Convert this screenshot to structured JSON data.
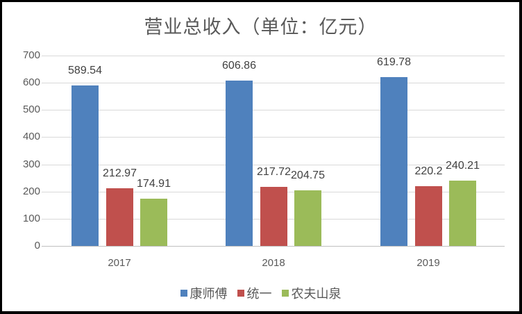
{
  "chart_data": {
    "type": "bar",
    "title": "营业总收入（单位：亿元）",
    "categories": [
      "2017",
      "2018",
      "2019"
    ],
    "series": [
      {
        "name": "康师傅",
        "color": "#4f81bd",
        "values": [
          589.54,
          606.86,
          619.78
        ],
        "labels": [
          "589.54",
          "606.86",
          "619.78"
        ]
      },
      {
        "name": "统一",
        "color": "#c0504d",
        "values": [
          212.97,
          217.72,
          220.2
        ],
        "labels": [
          "212.97",
          "217.72",
          "220.2"
        ]
      },
      {
        "name": "农夫山泉",
        "color": "#9bbb59",
        "values": [
          174.91,
          204.75,
          240.21
        ],
        "labels": [
          "174.91",
          "204.75",
          "240.21"
        ]
      }
    ],
    "xlabel": "",
    "ylabel": "",
    "ylim": [
      0,
      700
    ],
    "yticks": [
      "0",
      "100",
      "200",
      "300",
      "400",
      "500",
      "600",
      "700"
    ],
    "grid": true,
    "legend_position": "bottom",
    "data_labels": true
  }
}
